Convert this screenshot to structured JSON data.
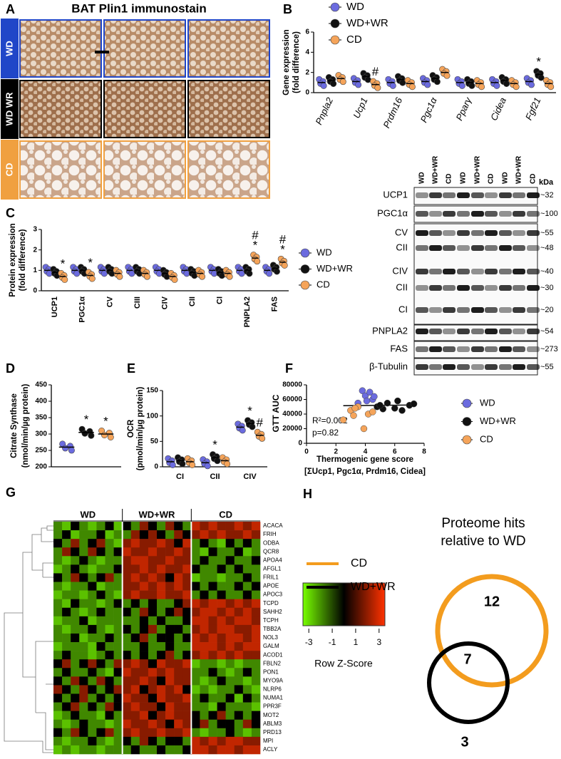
{
  "panel_labels": [
    "A",
    "B",
    "C",
    "D",
    "E",
    "F",
    "G",
    "H"
  ],
  "histology": {
    "title": "BAT Plin1 immunostain",
    "rows": [
      "WD",
      "WD WR",
      "CD"
    ]
  },
  "blot": {
    "lanes": [
      "WD",
      "WD+WR",
      "CD",
      "WD",
      "WD+WR",
      "CD",
      "WD",
      "WD+WR",
      "CD"
    ],
    "kda_header": "kDa",
    "bands": [
      {
        "label": "UCP1",
        "kda": "~32"
      },
      {
        "label": "PGC1α",
        "kda": "~100"
      },
      {
        "label": "CV",
        "kda": "~55"
      },
      {
        "label": "CII",
        "kda": "~48"
      },
      {
        "label": "CIV",
        "kda": "~40"
      },
      {
        "label": "CII",
        "kda": "~30"
      },
      {
        "label": "CI",
        "kda": "~20"
      },
      {
        "label": "PNPLA2",
        "kda": "~54"
      },
      {
        "label": "FAS",
        "kda": "~273"
      },
      {
        "label": "β-Tubulin",
        "kda": "~55"
      }
    ]
  },
  "chart_data": [
    {
      "type": "dot",
      "ylabel": [
        "Gene expression",
        "(fold difference)"
      ],
      "categories": [
        "Pnpla2",
        "Ucp1",
        "Prdm16",
        "Pgc1α",
        "Pparγ",
        "Cidea",
        "Fgf21"
      ],
      "ylim": [
        0,
        6
      ],
      "yticks": [
        0,
        2,
        4,
        6
      ],
      "legend": true,
      "series": [
        {
          "name": "WD",
          "color": "#6b6bdf",
          "values": [
            1,
            1.1,
            1,
            1.1,
            1,
            1,
            1.1
          ]
        },
        {
          "name": "WD+WR",
          "color": "#111111",
          "values": [
            1.2,
            1.6,
            1.3,
            1.4,
            1,
            1.2,
            1.8
          ],
          "annotations": [
            null,
            null,
            null,
            null,
            null,
            null,
            [
              "*"
            ]
          ]
        },
        {
          "name": "CD",
          "color": "#f5a45a",
          "values": [
            1.4,
            0.8,
            0.9,
            2,
            0.9,
            0.9,
            0.9
          ],
          "annotations": [
            null,
            [
              "#"
            ],
            null,
            null,
            null,
            null,
            null
          ]
        }
      ]
    },
    {
      "type": "dot",
      "ylabel": [
        "Protein expression",
        "(fold difference)"
      ],
      "categories": [
        "UCP1",
        "PGC1α",
        "CV",
        "CIII",
        "CIV",
        "CII",
        "CI",
        "PNPLA2",
        "FAS"
      ],
      "ylim": [
        0,
        3
      ],
      "yticks": [
        0,
        1,
        2,
        3
      ],
      "legend": true,
      "series": [
        {
          "name": "WD",
          "color": "#6b6bdf",
          "values": [
            1,
            1,
            1,
            1,
            1,
            1,
            1,
            1,
            1
          ]
        },
        {
          "name": "WD+WR",
          "color": "#111111",
          "values": [
            0.9,
            1,
            1,
            1,
            0.85,
            0.9,
            0.9,
            1,
            1.1
          ]
        },
        {
          "name": "CD",
          "color": "#f5a45a",
          "values": [
            0.7,
            0.75,
            0.85,
            0.85,
            0.7,
            0.85,
            0.85,
            1.6,
            1.4
          ],
          "annotations": [
            [
              "*"
            ],
            [
              "*"
            ],
            null,
            null,
            null,
            null,
            null,
            [
              "#",
              "*"
            ],
            [
              "#",
              "*"
            ]
          ]
        }
      ]
    },
    {
      "type": "dot",
      "ylabel": [
        "Citrate Synthase",
        "(nmol/min/µg protein)"
      ],
      "ylim": [
        200,
        450
      ],
      "yticks": [
        200,
        250,
        300,
        350,
        400,
        450
      ],
      "series": [
        {
          "color": "#6b6bdf",
          "values": [
            260
          ]
        },
        {
          "color": "#111111",
          "values": [
            305
          ],
          "annotations": [
            [
              "*"
            ]
          ]
        },
        {
          "color": "#f5a45a",
          "values": [
            300
          ],
          "annotations": [
            [
              "*"
            ]
          ]
        }
      ]
    },
    {
      "type": "dot",
      "ylabel": [
        "OCR",
        "(pmol/min/µg protein)"
      ],
      "categories": [
        "CI",
        "CII",
        "CIV"
      ],
      "ylim": [
        0,
        150
      ],
      "yticks": [
        0,
        50,
        100,
        150
      ],
      "series": [
        {
          "color": "#6b6bdf",
          "values": [
            10,
            8,
            78
          ]
        },
        {
          "color": "#111111",
          "values": [
            12,
            18,
            85
          ],
          "annotations": [
            null,
            [
              "*"
            ],
            [
              "*"
            ]
          ]
        },
        {
          "color": "#f5a45a",
          "values": [
            10,
            12,
            62
          ],
          "annotations": [
            null,
            null,
            [
              "#"
            ]
          ]
        }
      ]
    },
    {
      "type": "scatter",
      "ylabel": "GTT AUC",
      "xlabel": [
        "Thermogenic gene score",
        "[ΣUcp1, Pgc1α, Prdm16, Cidea]"
      ],
      "xlim": [
        0,
        8
      ],
      "ylim": [
        0,
        80000
      ],
      "xticks": [
        0,
        2,
        4,
        6,
        8
      ],
      "yticks": [
        0,
        20000,
        40000,
        60000,
        80000
      ],
      "annotations": [
        "R²=0.002",
        "p=0.82"
      ],
      "fit": {
        "x": [
          2.5,
          7.5
        ],
        "y": [
          51500,
          52500
        ]
      },
      "series": [
        {
          "name": "WD",
          "color": "#6b6bdf",
          "x": [
            3.8,
            4.0,
            4.3,
            4.5,
            3.5,
            4.1,
            4.6
          ],
          "y": [
            72000,
            65000,
            70000,
            60000,
            55000,
            58000,
            64000
          ]
        },
        {
          "name": "WD+WR",
          "color": "#111111",
          "x": [
            4.8,
            5.2,
            5.5,
            6.0,
            6.2,
            6.5,
            7.0,
            7.3,
            5.0
          ],
          "y": [
            50000,
            47000,
            55000,
            48000,
            58000,
            45000,
            52000,
            54000,
            52000
          ]
        },
        {
          "name": "CD",
          "color": "#f5a45a",
          "x": [
            2.5,
            3.0,
            3.2,
            3.5,
            3.9,
            4.2,
            4.5,
            3.3
          ],
          "y": [
            32000,
            45000,
            38000,
            50000,
            20000,
            40000,
            43000,
            48000
          ]
        }
      ]
    },
    {
      "type": "heatmap",
      "groups": [
        "WD",
        "WD+WR",
        "CD"
      ],
      "clim": [
        -3.5,
        3.5
      ],
      "cticks": [
        -3,
        -1,
        1,
        3
      ],
      "clabel": "Row Z-Score",
      "rows": [
        "ACACA",
        "FRIH",
        "ODBA",
        "QCR8",
        "APOA4",
        "AFGL1",
        "FRIL1",
        "APOE",
        "APOC3",
        "TCPD",
        "SAHH2",
        "TCPH",
        "TBB2A",
        "NOL3",
        "GALM",
        "ACOD1",
        "FBLN2",
        "PON1",
        "MYO9A",
        "NLRP6",
        "NUMA1",
        "PPR3F",
        "MOT2",
        "ABLM3",
        "PRD13",
        "MPI",
        "ACLY"
      ],
      "values": [
        [
          -1,
          -2,
          0,
          -1,
          -2,
          -1,
          0,
          -2,
          0,
          -1,
          1,
          0,
          -1,
          1,
          0,
          -1,
          2,
          1,
          2,
          1,
          1,
          2,
          1,
          2
        ],
        [
          -1,
          0,
          -2,
          -1,
          -1,
          0,
          -2,
          -1,
          -1,
          1,
          0,
          1,
          0,
          -1,
          1,
          0,
          1,
          2,
          1,
          2,
          1,
          1,
          2,
          1
        ],
        [
          0,
          -1,
          1,
          -1,
          0,
          1,
          -1,
          -2,
          1,
          2,
          1,
          1,
          2,
          1,
          0,
          2,
          -1,
          0,
          -1,
          -2,
          0,
          -1,
          0,
          -1
        ],
        [
          -1,
          1,
          0,
          -1,
          1,
          0,
          -1,
          0,
          2,
          1,
          1,
          2,
          1,
          1,
          2,
          1,
          -1,
          -2,
          0,
          -1,
          -1,
          0,
          -2,
          -1
        ],
        [
          -1,
          -2,
          -1,
          0,
          -1,
          -2,
          -1,
          -1,
          1,
          2,
          2,
          1,
          1,
          2,
          1,
          1,
          -1,
          0,
          -1,
          -1,
          0,
          -1,
          -1,
          0
        ],
        [
          -2,
          -1,
          0,
          -1,
          -2,
          -1,
          -1,
          0,
          1,
          1,
          2,
          1,
          2,
          1,
          1,
          2,
          0,
          -1,
          -1,
          0,
          -1,
          0,
          -1,
          -1
        ],
        [
          0,
          -1,
          1,
          0,
          -1,
          0,
          1,
          -1,
          1,
          2,
          1,
          2,
          1,
          0,
          2,
          1,
          -2,
          -1,
          -1,
          -2,
          -1,
          -1,
          0,
          -1
        ],
        [
          -1,
          -2,
          -1,
          -1,
          0,
          -2,
          -1,
          -1,
          1,
          1,
          2,
          1,
          2,
          1,
          2,
          1,
          0,
          -1,
          0,
          -1,
          -1,
          0,
          -1,
          0
        ],
        [
          -2,
          -1,
          -1,
          -2,
          -1,
          0,
          -1,
          -2,
          1,
          2,
          1,
          1,
          2,
          1,
          1,
          2,
          -1,
          0,
          -1,
          0,
          -1,
          -1,
          0,
          -1
        ],
        [
          -1,
          -2,
          0,
          -1,
          -1,
          -2,
          -1,
          0,
          -1,
          0,
          -1,
          0,
          -1,
          -1,
          0,
          1,
          2,
          1,
          2,
          2,
          1,
          2,
          1,
          2
        ],
        [
          -1,
          0,
          -1,
          -2,
          -1,
          0,
          -1,
          -1,
          0,
          -1,
          1,
          0,
          -1,
          0,
          1,
          0,
          1,
          2,
          2,
          1,
          2,
          1,
          2,
          1
        ],
        [
          -2,
          -1,
          -1,
          0,
          -2,
          -1,
          -1,
          -1,
          -1,
          -1,
          0,
          -1,
          0,
          -1,
          -1,
          0,
          2,
          2,
          1,
          2,
          1,
          2,
          2,
          1
        ],
        [
          -1,
          -2,
          -1,
          -1,
          0,
          -1,
          -2,
          -1,
          0,
          -1,
          0,
          1,
          -1,
          0,
          0,
          -1,
          1,
          2,
          1,
          2,
          2,
          1,
          1,
          2
        ],
        [
          -1,
          -1,
          0,
          -2,
          -1,
          -1,
          0,
          -1,
          -1,
          0,
          1,
          -1,
          0,
          0,
          -1,
          0,
          2,
          1,
          2,
          1,
          2,
          2,
          1,
          2
        ],
        [
          -2,
          -1,
          -1,
          -1,
          -2,
          0,
          -1,
          -1,
          -1,
          -1,
          0,
          -1,
          -1,
          0,
          -1,
          -1,
          2,
          2,
          2,
          1,
          2,
          1,
          2,
          2
        ],
        [
          -1,
          0,
          -1,
          -1,
          -2,
          -1,
          0,
          -1,
          0,
          -1,
          0,
          -1,
          0,
          1,
          -1,
          0,
          1,
          2,
          1,
          2,
          1,
          2,
          1,
          1
        ],
        [
          0,
          1,
          -1,
          0,
          1,
          0,
          -1,
          1,
          1,
          2,
          1,
          0,
          2,
          1,
          1,
          2,
          -2,
          -1,
          -1,
          -2,
          -1,
          -2,
          -1,
          -1
        ],
        [
          -1,
          0,
          -1,
          -1,
          0,
          -1,
          -2,
          0,
          2,
          1,
          1,
          2,
          1,
          2,
          1,
          1,
          -1,
          -1,
          0,
          -1,
          -2,
          -1,
          0,
          -1
        ],
        [
          0,
          -1,
          1,
          0,
          -1,
          1,
          0,
          -1,
          1,
          1,
          2,
          1,
          0,
          2,
          1,
          1,
          -1,
          -2,
          -1,
          0,
          -1,
          -1,
          -2,
          -1
        ],
        [
          1,
          0,
          -1,
          1,
          0,
          -1,
          0,
          1,
          1,
          2,
          0,
          1,
          2,
          1,
          2,
          0,
          -2,
          -1,
          -2,
          -1,
          -1,
          0,
          -1,
          -2
        ],
        [
          0,
          -1,
          0,
          1,
          -1,
          0,
          -1,
          0,
          2,
          1,
          1,
          0,
          2,
          1,
          1,
          2,
          -1,
          0,
          -1,
          -1,
          0,
          -2,
          0,
          -1
        ],
        [
          -1,
          0,
          1,
          -1,
          0,
          -1,
          1,
          0,
          1,
          2,
          1,
          1,
          0,
          2,
          1,
          1,
          -1,
          -1,
          -2,
          0,
          -1,
          -1,
          -1,
          -2
        ],
        [
          -2,
          -1,
          0,
          -1,
          -1,
          -2,
          0,
          -1,
          1,
          1,
          2,
          0,
          1,
          2,
          1,
          1,
          0,
          -1,
          0,
          1,
          -1,
          0,
          -1,
          0
        ],
        [
          -1,
          -2,
          -1,
          0,
          -1,
          -1,
          -2,
          -1,
          2,
          1,
          1,
          2,
          1,
          0,
          2,
          1,
          0,
          1,
          -1,
          0,
          0,
          -1,
          1,
          0
        ],
        [
          0,
          -1,
          1,
          0,
          -1,
          0,
          1,
          -1,
          1,
          2,
          1,
          1,
          2,
          1,
          1,
          2,
          -1,
          -2,
          -1,
          -1,
          0,
          -1,
          -2,
          -1
        ],
        [
          -1,
          -2,
          -1,
          -1,
          0,
          -1,
          -2,
          -1,
          0,
          -1,
          1,
          0,
          -1,
          0,
          0,
          -1,
          2,
          1,
          2,
          1,
          2,
          2,
          1,
          1
        ],
        [
          -2,
          -1,
          -2,
          -1,
          -1,
          -2,
          -1,
          -1,
          -1,
          0,
          -1,
          -1,
          0,
          -1,
          -1,
          0,
          2,
          2,
          1,
          2,
          2,
          1,
          2,
          2
        ]
      ]
    }
  ],
  "venn": {
    "title": [
      "Proteome hits",
      "relative to WD"
    ],
    "legend": [
      {
        "name": "CD",
        "color": "#f39c1e"
      },
      {
        "name": "WD+WR",
        "color": "#000000"
      }
    ],
    "counts": {
      "cd_only": 12,
      "both": 7,
      "wdwr_only": 3
    }
  }
}
